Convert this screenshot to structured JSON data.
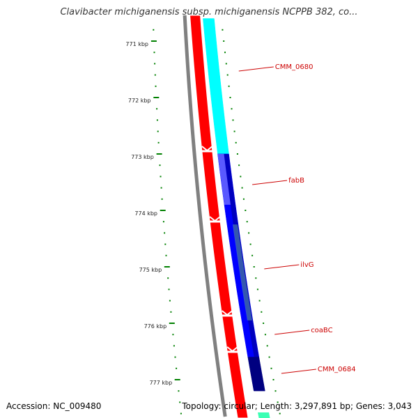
{
  "title": "Clavibacter michiganensis subsp. michiganensis NCPPB 382, co...",
  "accession": "Accession: NC_009480",
  "topology_summary": "Topology: circular; Length: 3,297,891 bp; Genes: 3,043",
  "ticks": [
    {
      "label": "771 kbp",
      "kbp": 771
    },
    {
      "label": "772 kbp",
      "kbp": 772
    },
    {
      "label": "773 kbp",
      "kbp": 773
    },
    {
      "label": "774 kbp",
      "kbp": 774
    },
    {
      "label": "775 kbp",
      "kbp": 775
    },
    {
      "label": "776 kbp",
      "kbp": 776
    },
    {
      "label": "777 kbp",
      "kbp": 777
    }
  ],
  "genes": [
    {
      "name": "CMM_0680",
      "start_kbp": 770.55,
      "end_kbp": 772.95,
      "color": "#00ffff"
    },
    {
      "name": "fabB",
      "start_kbp": 772.95,
      "end_kbp": 774.2,
      "color": "#0000ff"
    },
    {
      "name": "ilvG",
      "start_kbp": 774.2,
      "end_kbp": 775.9,
      "color": "#0000ff"
    },
    {
      "name": "coaBC",
      "start_kbp": 775.9,
      "end_kbp": 776.55,
      "color": "#0000ff"
    },
    {
      "name": "CMM_0684",
      "start_kbp": 776.55,
      "end_kbp": 777.15,
      "color": "#000080"
    }
  ],
  "colors": {
    "backbone": "#808080",
    "forward_strand": "#ff0000",
    "tick": "#008000",
    "gene_label": "#cc0000",
    "overlap_tint": "#7f7fff"
  }
}
